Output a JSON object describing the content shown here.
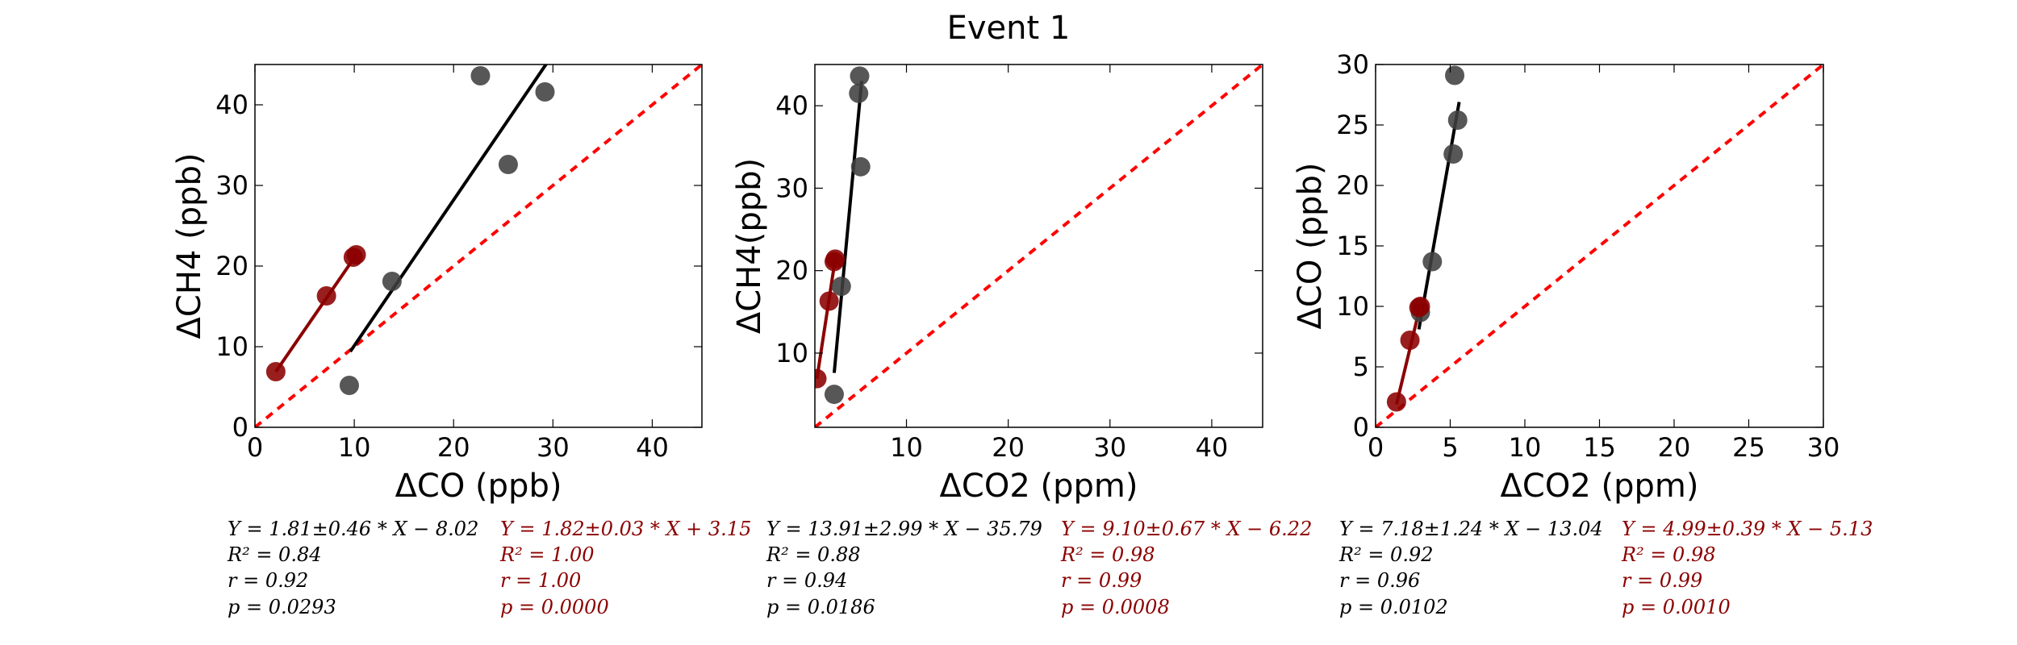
{
  "figure": {
    "title": "Event 1"
  },
  "chart_data": [
    {
      "type": "scatter",
      "xlabel": "ΔCO (ppb)",
      "ylabel": "ΔCH4 (ppb)",
      "xlim": [
        0,
        45
      ],
      "ylim": [
        0,
        45
      ],
      "xticks": [
        0,
        10,
        20,
        30,
        40
      ],
      "yticks": [
        0,
        10,
        20,
        30,
        40
      ],
      "reference_line": "1:1",
      "series": [
        {
          "color": "#404040",
          "points": [
            [
              9.5,
              5.2
            ],
            [
              13.8,
              18.1
            ],
            [
              22.7,
              43.6
            ],
            [
              25.5,
              32.6
            ],
            [
              29.2,
              41.6
            ]
          ],
          "fit": [
            [
              9.6,
              9.4
            ],
            [
              30.4,
              47.0
            ]
          ]
        },
        {
          "color": "#8b0000",
          "points": [
            [
              2.1,
              6.9
            ],
            [
              7.2,
              16.3
            ],
            [
              9.9,
              21.1
            ],
            [
              10.2,
              21.4
            ]
          ],
          "fit": [
            [
              2.1,
              6.9
            ],
            [
              10.2,
              21.4
            ]
          ]
        }
      ],
      "stats": {
        "black": [
          "Y = 1.81±0.46 * X − 8.02",
          "R² = 0.84",
          "r = 0.92",
          "p = 0.0293"
        ],
        "red": [
          "Y = 1.82±0.03 * X + 3.15",
          "R² = 1.00",
          "r = 1.00",
          "p = 0.0000"
        ]
      }
    },
    {
      "type": "scatter",
      "xlabel": "ΔCO2 (ppm)",
      "ylabel": "ΔCH4(ppb)",
      "xlim": [
        1,
        45
      ],
      "ylim": [
        1,
        45
      ],
      "xticks": [
        10,
        20,
        30,
        40
      ],
      "yticks": [
        10,
        20,
        30,
        40
      ],
      "reference_line": "1:1",
      "series": [
        {
          "color": "#404040",
          "points": [
            [
              2.9,
              5.0
            ],
            [
              3.6,
              18.1
            ],
            [
              5.4,
              43.6
            ],
            [
              5.3,
              41.5
            ],
            [
              5.5,
              32.6
            ]
          ],
          "fit": [
            [
              2.9,
              7.6
            ],
            [
              5.6,
              43.0
            ]
          ]
        },
        {
          "color": "#8b0000",
          "points": [
            [
              1.2,
              6.9
            ],
            [
              2.4,
              16.3
            ],
            [
              2.9,
              21.1
            ],
            [
              3.0,
              21.4
            ]
          ],
          "fit": [
            [
              1.2,
              6.9
            ],
            [
              3.0,
              21.4
            ]
          ]
        }
      ],
      "stats": {
        "black": [
          "Y = 13.91±2.99 * X − 35.79",
          "R² = 0.88",
          "r = 0.94",
          "p = 0.0186"
        ],
        "red": [
          "Y = 9.10±0.67 * X − 6.22",
          "R² = 0.98",
          "r = 0.99",
          "p = 0.0008"
        ]
      }
    },
    {
      "type": "scatter",
      "xlabel": "ΔCO2 (ppm)",
      "ylabel": "ΔCO (ppb)",
      "xlim": [
        0,
        30
      ],
      "ylim": [
        0,
        30
      ],
      "xticks": [
        0,
        5,
        10,
        15,
        20,
        25,
        30
      ],
      "yticks": [
        0,
        5,
        10,
        15,
        20,
        25,
        30
      ],
      "reference_line": "1:1",
      "series": [
        {
          "color": "#404040",
          "points": [
            [
              3.0,
              9.5
            ],
            [
              3.8,
              13.7
            ],
            [
              5.2,
              22.6
            ],
            [
              5.3,
              29.1
            ],
            [
              5.5,
              25.4
            ]
          ],
          "fit": [
            [
              2.9,
              8.1
            ],
            [
              5.6,
              26.9
            ]
          ]
        },
        {
          "color": "#8b0000",
          "points": [
            [
              1.4,
              2.1
            ],
            [
              2.3,
              7.2
            ],
            [
              2.9,
              9.9
            ],
            [
              3.0,
              10.0
            ]
          ],
          "fit": [
            [
              1.4,
              1.9
            ],
            [
              3.0,
              10.1
            ]
          ]
        }
      ],
      "stats": {
        "black": [
          "Y = 7.18±1.24 * X − 13.04",
          "R² = 0.92",
          "r = 0.96",
          "p = 0.0102"
        ],
        "red": [
          "Y = 4.99±0.39 * X − 5.13",
          "R² = 0.98",
          "r = 0.99",
          "p = 0.0010"
        ]
      }
    }
  ]
}
